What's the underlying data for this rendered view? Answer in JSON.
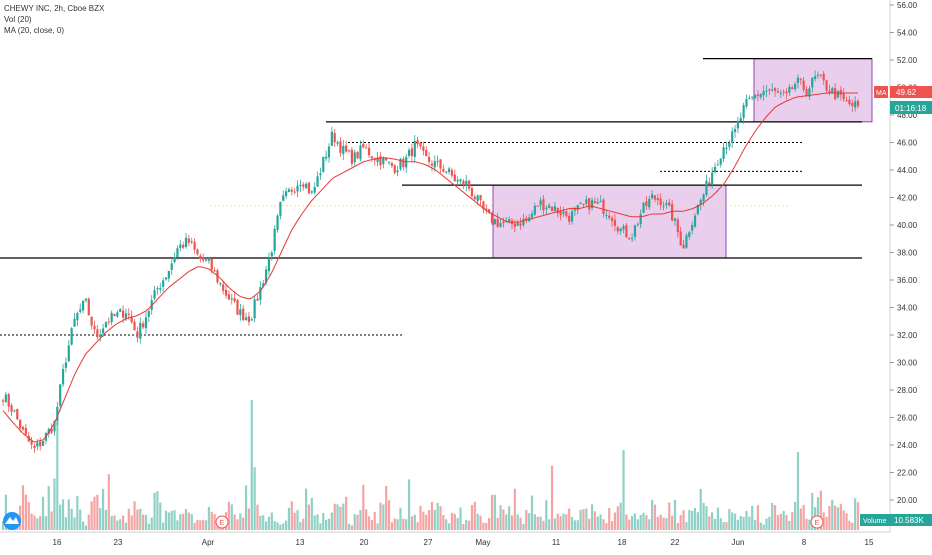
{
  "legend": {
    "symbol_line": "CHEWY INC, 2h, Cboe BZX",
    "volume_line": "Vol (20)",
    "ma_line": "MA (20, close, 0)"
  },
  "price_axis": {
    "ticks": [
      "56.00",
      "54.00",
      "52.00",
      "50.00",
      "48.00",
      "46.00",
      "44.00",
      "42.00",
      "40.00",
      "38.00",
      "36.00",
      "34.00",
      "32.00",
      "30.00",
      "28.00",
      "26.00",
      "24.00",
      "22.00",
      "20.00"
    ],
    "tick_values": [
      56,
      54,
      52,
      50,
      48,
      46,
      44,
      42,
      40,
      38,
      36,
      34,
      32,
      30,
      28,
      26,
      24,
      22,
      20
    ]
  },
  "time_axis": {
    "labels": [
      "16",
      "23",
      "Apr",
      "13",
      "20",
      "27",
      "May",
      "11",
      "18",
      "22",
      "Jun",
      "8",
      "15"
    ]
  },
  "badges": {
    "ma_label": "MA",
    "ma_value": "49.62",
    "countdown": "01:16:18",
    "volume_label": "Volume",
    "volume_value": "10.583K",
    "earnings_marker": "E"
  },
  "colors": {
    "up": "#26a69a",
    "down": "#ef5350",
    "up_volume": "#8fd1c7",
    "down_volume": "#f5a3a3",
    "ma_line": "#e53935",
    "box_fill": "#e1bee7",
    "box_stroke": "#7b1fa2",
    "level_line": "#000000",
    "countdown_bg": "#26a69a",
    "ma_badge_bg": "#ef5350"
  },
  "chart_data": {
    "type": "candlestick",
    "title": "CHEWY INC, 2h, Cboe BZX",
    "ylim": [
      19,
      56.5
    ],
    "grid": false,
    "price_path_approx": [
      27.6,
      26.5,
      24.8,
      23.6,
      24.5,
      25.6,
      30.0,
      33.2,
      34.4,
      31.8,
      33.0,
      33.4,
      33.8,
      32.0,
      33.6,
      35.4,
      36.6,
      38.4,
      38.8,
      37.6,
      37.2,
      35.8,
      34.6,
      33.6,
      33.2,
      35.4,
      38.0,
      41.6,
      42.6,
      43.4,
      42.2,
      44.4,
      46.6,
      45.4,
      44.8,
      45.6,
      45.0,
      44.6,
      44.2,
      44.6,
      45.8,
      44.8,
      44.4,
      44.0,
      43.2,
      43.0,
      41.8,
      40.6,
      40.2,
      40.0,
      40.2,
      40.4,
      41.6,
      41.4,
      41.0,
      40.6,
      41.2,
      41.6,
      41.4,
      40.8,
      39.6,
      39.2,
      41.0,
      42.0,
      41.8,
      40.6,
      38.4,
      40.6,
      42.2,
      44.2,
      45.8,
      46.6,
      48.6,
      49.4,
      49.8,
      49.6,
      49.2,
      50.4,
      49.8,
      50.8,
      50.0,
      49.4,
      48.8,
      48.6
    ],
    "ma20_path_approx": [
      26.5,
      25.6,
      24.8,
      24.2,
      24.4,
      25.6,
      27.4,
      29.2,
      30.6,
      31.4,
      32.2,
      32.8,
      33.2,
      33.4,
      33.8,
      34.6,
      35.4,
      36.0,
      36.6,
      37.0,
      36.8,
      36.2,
      35.4,
      34.8,
      34.6,
      35.2,
      36.4,
      38.0,
      39.6,
      40.8,
      41.8,
      42.6,
      43.4,
      43.8,
      44.2,
      44.6,
      44.8,
      44.9,
      44.8,
      44.6,
      44.6,
      44.4,
      44.0,
      43.4,
      42.8,
      42.2,
      41.6,
      41.0,
      40.6,
      40.2,
      40.2,
      40.4,
      40.6,
      40.8,
      41.0,
      41.2,
      41.2,
      41.4,
      41.2,
      41.0,
      40.8,
      40.6,
      40.6,
      40.8,
      40.8,
      41.0,
      41.0,
      41.2,
      41.6,
      42.2,
      43.0,
      44.2,
      45.6,
      46.8,
      47.8,
      48.6,
      49.0,
      49.3,
      49.4,
      49.5,
      49.6,
      49.6,
      49.6,
      49.6
    ],
    "volume_pattern_approx": [
      0.3,
      0.12,
      0.6,
      0.22,
      0.45,
      0.5,
      0.3,
      0.2,
      0.15,
      0.35,
      0.6,
      0.25,
      0.2,
      0.3,
      0.15,
      0.4,
      0.2,
      0.3,
      0.2,
      0.15,
      0.25,
      0.18,
      0.3,
      0.2,
      0.7,
      0.15,
      0.2,
      0.1,
      0.3,
      0.2,
      0.35,
      0.18,
      0.25,
      0.4,
      0.15,
      0.3,
      0.2,
      0.45,
      0.15,
      0.28,
      0.2,
      0.25,
      0.35,
      0.18,
      0.22,
      0.15,
      0.3,
      0.2,
      0.35,
      0.25,
      0.4,
      0.2,
      0.15,
      0.3,
      0.18,
      0.25,
      0.2,
      0.3,
      0.15,
      0.22,
      0.35,
      0.25,
      0.18,
      0.3,
      0.15,
      0.28,
      0.2,
      0.35,
      0.4,
      0.25,
      0.18,
      0.3,
      0.2,
      0.25,
      0.15,
      0.3,
      0.2,
      0.35,
      0.25,
      0.4,
      0.18,
      0.3,
      0.2,
      0.3
    ],
    "horizontal_levels": [
      {
        "price": 52.1,
        "style": "solid",
        "from_label": "Jun",
        "to_label": "8"
      },
      {
        "price": 47.5,
        "style": "solid",
        "from_label": "13",
        "to_label": "15"
      },
      {
        "price": 46.0,
        "style": "dotted",
        "from_label": "20",
        "to_label": "8"
      },
      {
        "price": 43.9,
        "style": "dotted",
        "from_label": "22",
        "to_label": "8"
      },
      {
        "price": 42.9,
        "style": "solid",
        "from_label": "20",
        "to_label": "15"
      },
      {
        "price": 41.4,
        "style": "dotted",
        "from_label": "23",
        "to_label": "8"
      },
      {
        "price": 37.6,
        "style": "solid",
        "from_label": "16",
        "to_label": "15"
      },
      {
        "price": 32.0,
        "style": "dotted",
        "from_label": "16",
        "to_label": "13"
      }
    ],
    "rectangles": [
      {
        "price_top": 42.9,
        "price_bottom": 37.6,
        "from_label": "May",
        "to_label": "22"
      },
      {
        "price_top": 52.1,
        "price_bottom": 47.5,
        "from_label": "Jun",
        "to_label": "8"
      }
    ]
  }
}
